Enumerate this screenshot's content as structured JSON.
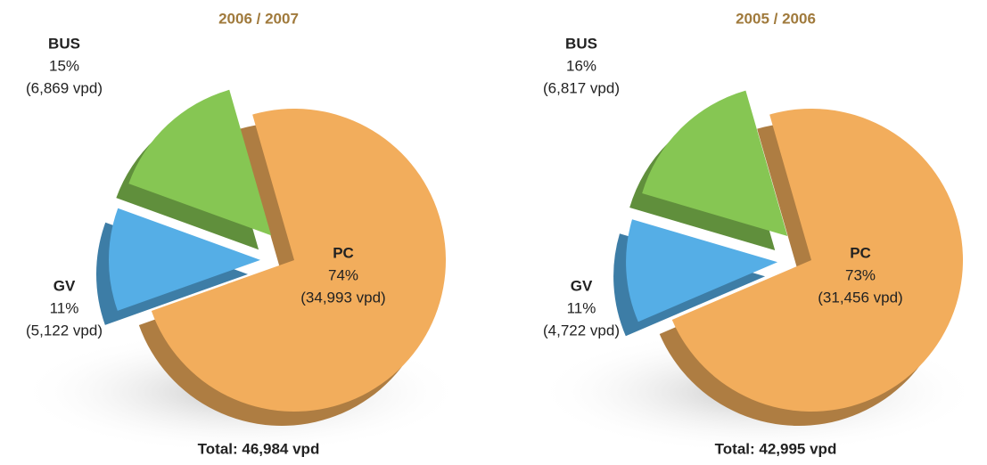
{
  "chart_data": [
    {
      "type": "pie",
      "title": "2006 / 2007",
      "categories": [
        "PC",
        "BUS",
        "GV"
      ],
      "values": [
        74,
        15,
        11
      ],
      "value_labels": [
        "74%",
        "15%",
        "11%"
      ],
      "counts": [
        34993,
        6869,
        5122
      ],
      "count_labels": [
        "(34,993 vpd)",
        "(6,869 vpd)",
        "(5,122 vpd)"
      ],
      "colors": [
        "#f2ad5c",
        "#86c653",
        "#55aee6"
      ],
      "total": "Total: 46,984 vpd"
    },
    {
      "type": "pie",
      "title": "2005 / 2006",
      "categories": [
        "PC",
        "BUS",
        "GV"
      ],
      "values": [
        73,
        16,
        11
      ],
      "value_labels": [
        "73%",
        "16%",
        "11%"
      ],
      "counts": [
        31456,
        6817,
        4722
      ],
      "count_labels": [
        "(31,456 vpd)",
        "(6,817 vpd)",
        "(4,722 vpd)"
      ],
      "colors": [
        "#f2ad5c",
        "#86c653",
        "#55aee6"
      ],
      "total": "Total: 42,995 vpd"
    }
  ]
}
